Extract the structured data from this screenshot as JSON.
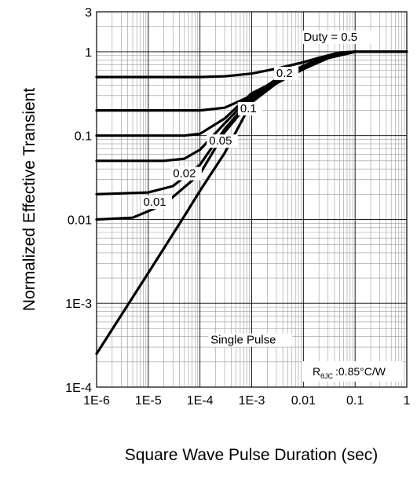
{
  "chart_data": {
    "type": "line",
    "xlabel": "Square Wave Pulse Duration (sec)",
    "ylabel": "Normalized Effective Transient",
    "xscale": "log",
    "yscale": "log",
    "xlim": [
      1e-06,
      1
    ],
    "ylim": [
      0.0001,
      3
    ],
    "grid": true,
    "x_tick_labels": [
      "1E-6",
      "1E-5",
      "1E-4",
      "1E-3",
      "0.01",
      "0.1",
      "1"
    ],
    "y_tick_labels": [
      "1E-4",
      "1E-3",
      "0.01",
      "0.1",
      "1",
      "3"
    ],
    "annotation": {
      "main": "R",
      "sub": "θJC",
      "value": ":0.85°C/W"
    },
    "series": [
      {
        "name": "Duty = 0.5",
        "points": [
          [
            1e-06,
            0.5
          ],
          [
            0.0001,
            0.5
          ],
          [
            0.0003,
            0.51
          ],
          [
            0.001,
            0.55
          ],
          [
            0.003,
            0.63
          ],
          [
            0.01,
            0.75
          ],
          [
            0.02,
            0.85
          ],
          [
            0.05,
            0.98
          ],
          [
            0.1,
            1.0
          ],
          [
            1,
            1.0
          ]
        ]
      },
      {
        "name": "0.2",
        "points": [
          [
            1e-06,
            0.2
          ],
          [
            0.0001,
            0.2
          ],
          [
            0.0003,
            0.215
          ],
          [
            0.001,
            0.3
          ],
          [
            0.003,
            0.47
          ],
          [
            0.01,
            0.68
          ],
          [
            0.02,
            0.82
          ],
          [
            0.05,
            0.97
          ],
          [
            0.1,
            1.0
          ]
        ]
      },
      {
        "name": "0.1",
        "points": [
          [
            1e-06,
            0.1
          ],
          [
            5e-05,
            0.1
          ],
          [
            0.0001,
            0.105
          ],
          [
            0.0003,
            0.16
          ],
          [
            0.001,
            0.32
          ],
          [
            0.003,
            0.45
          ],
          [
            0.01,
            0.66
          ],
          [
            0.03,
            0.86
          ],
          [
            0.06,
            0.98
          ],
          [
            0.1,
            1.0
          ]
        ]
      },
      {
        "name": "0.05",
        "points": [
          [
            1e-06,
            0.05
          ],
          [
            2e-05,
            0.05
          ],
          [
            5e-05,
            0.053
          ],
          [
            0.0001,
            0.068
          ],
          [
            0.0003,
            0.14
          ],
          [
            0.001,
            0.3
          ],
          [
            0.003,
            0.44
          ],
          [
            0.01,
            0.65
          ],
          [
            0.03,
            0.85
          ],
          [
            0.06,
            0.97
          ],
          [
            0.1,
            1.0
          ]
        ]
      },
      {
        "name": "0.02",
        "points": [
          [
            1e-06,
            0.02
          ],
          [
            1e-05,
            0.021
          ],
          [
            3e-05,
            0.025
          ],
          [
            0.0001,
            0.045
          ],
          [
            0.0003,
            0.12
          ],
          [
            0.001,
            0.28
          ],
          [
            0.003,
            0.43
          ],
          [
            0.01,
            0.64
          ],
          [
            0.03,
            0.85
          ],
          [
            0.1,
            1.0
          ]
        ]
      },
      {
        "name": "0.01",
        "points": [
          [
            1e-06,
            0.01
          ],
          [
            5e-06,
            0.0105
          ],
          [
            2e-05,
            0.015
          ],
          [
            0.0001,
            0.035
          ],
          [
            0.0003,
            0.11
          ],
          [
            0.001,
            0.27
          ],
          [
            0.003,
            0.42
          ],
          [
            0.01,
            0.63
          ],
          [
            0.03,
            0.84
          ],
          [
            0.1,
            1.0
          ]
        ]
      },
      {
        "name": "Single Pulse",
        "points": [
          [
            1e-06,
            0.00025
          ],
          [
            1e-05,
            0.0023
          ],
          [
            5e-05,
            0.011
          ],
          [
            0.0001,
            0.022
          ],
          [
            0.0003,
            0.062
          ],
          [
            0.001,
            0.25
          ],
          [
            0.003,
            0.42
          ],
          [
            0.01,
            0.62
          ],
          [
            0.03,
            0.84
          ],
          [
            0.1,
            1.0
          ],
          [
            1,
            1.0
          ]
        ]
      }
    ],
    "labels": [
      {
        "text": "Duty = 0.5",
        "x": 0.01,
        "y": 1.35
      },
      {
        "text": "0.2",
        "x": 0.003,
        "y": 0.5
      },
      {
        "text": "0.1",
        "x": 0.0006,
        "y": 0.19
      },
      {
        "text": "0.05",
        "x": 0.00015,
        "y": 0.078
      },
      {
        "text": "0.02",
        "x": 3e-05,
        "y": 0.032
      },
      {
        "text": "0.01",
        "x": 8e-06,
        "y": 0.0145
      },
      {
        "text": "Single Pulse",
        "x": 0.00016,
        "y": 0.00033
      }
    ]
  }
}
